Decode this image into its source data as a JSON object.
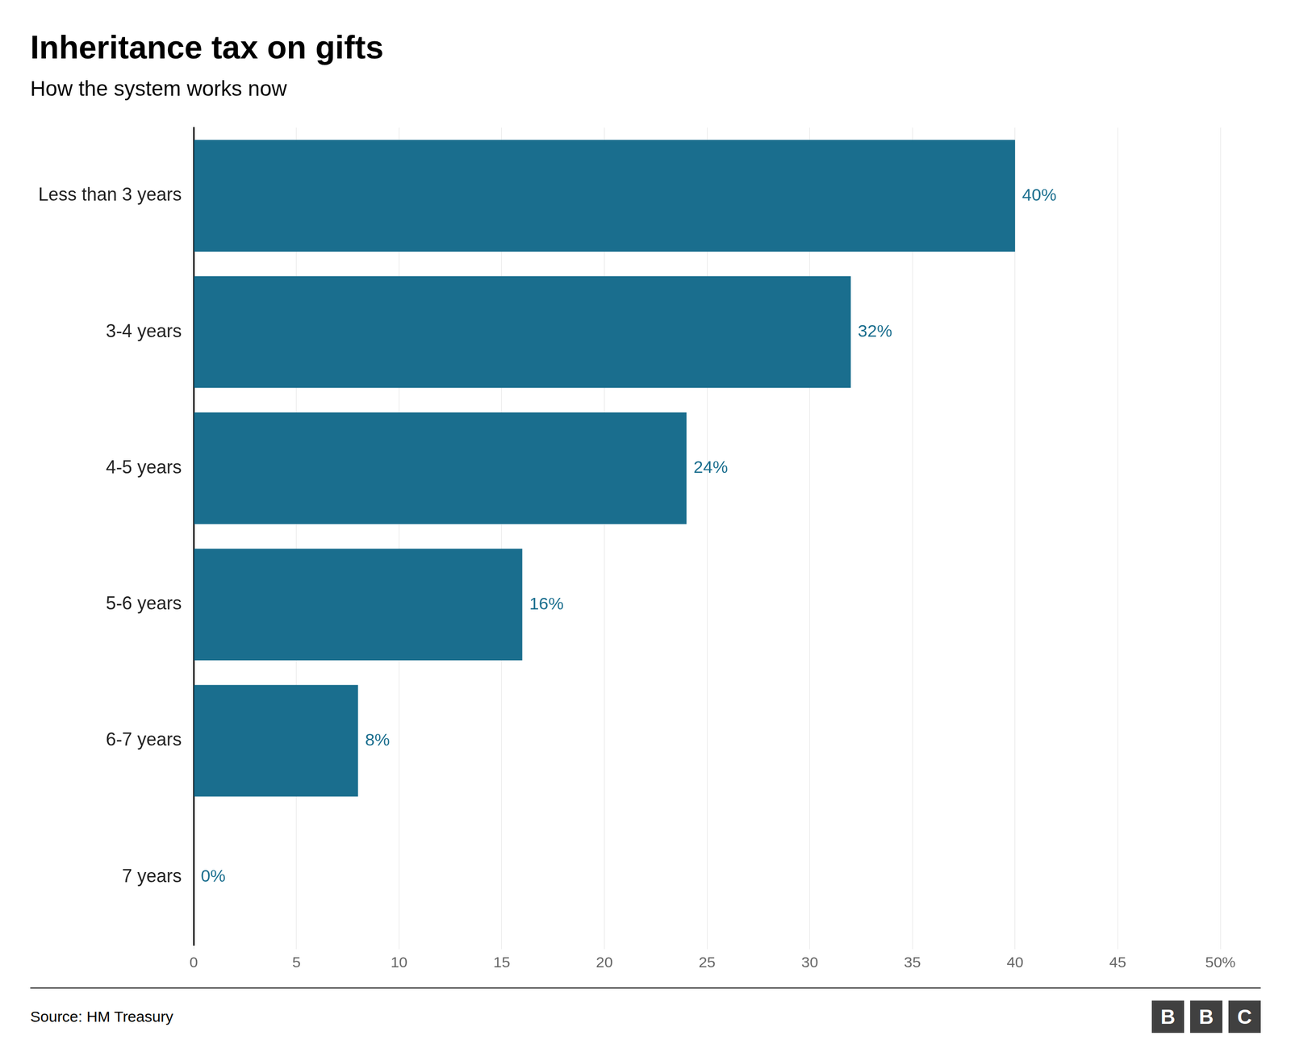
{
  "chart_data": {
    "type": "bar",
    "orientation": "horizontal",
    "title": "Inheritance tax on gifts",
    "subtitle": "How the system works now",
    "source": "Source: HM Treasury",
    "annotations": [
      "B",
      "B",
      "C"
    ],
    "categories": [
      "Less than 3 years",
      "3-4 years",
      "4-5 years",
      "5-6 years",
      "6-7 years",
      "7 years"
    ],
    "values": [
      40,
      32,
      24,
      16,
      8,
      0
    ],
    "value_labels": [
      "40%",
      "32%",
      "24%",
      "16%",
      "8%",
      "0%"
    ],
    "data_labels": true,
    "color": "#1a6e8e",
    "xlim": [
      0,
      50
    ],
    "xticks": [
      0,
      5,
      10,
      15,
      20,
      25,
      30,
      35,
      40,
      45,
      {
        "value": 50,
        "label": "50%"
      }
    ],
    "grid": true
  }
}
